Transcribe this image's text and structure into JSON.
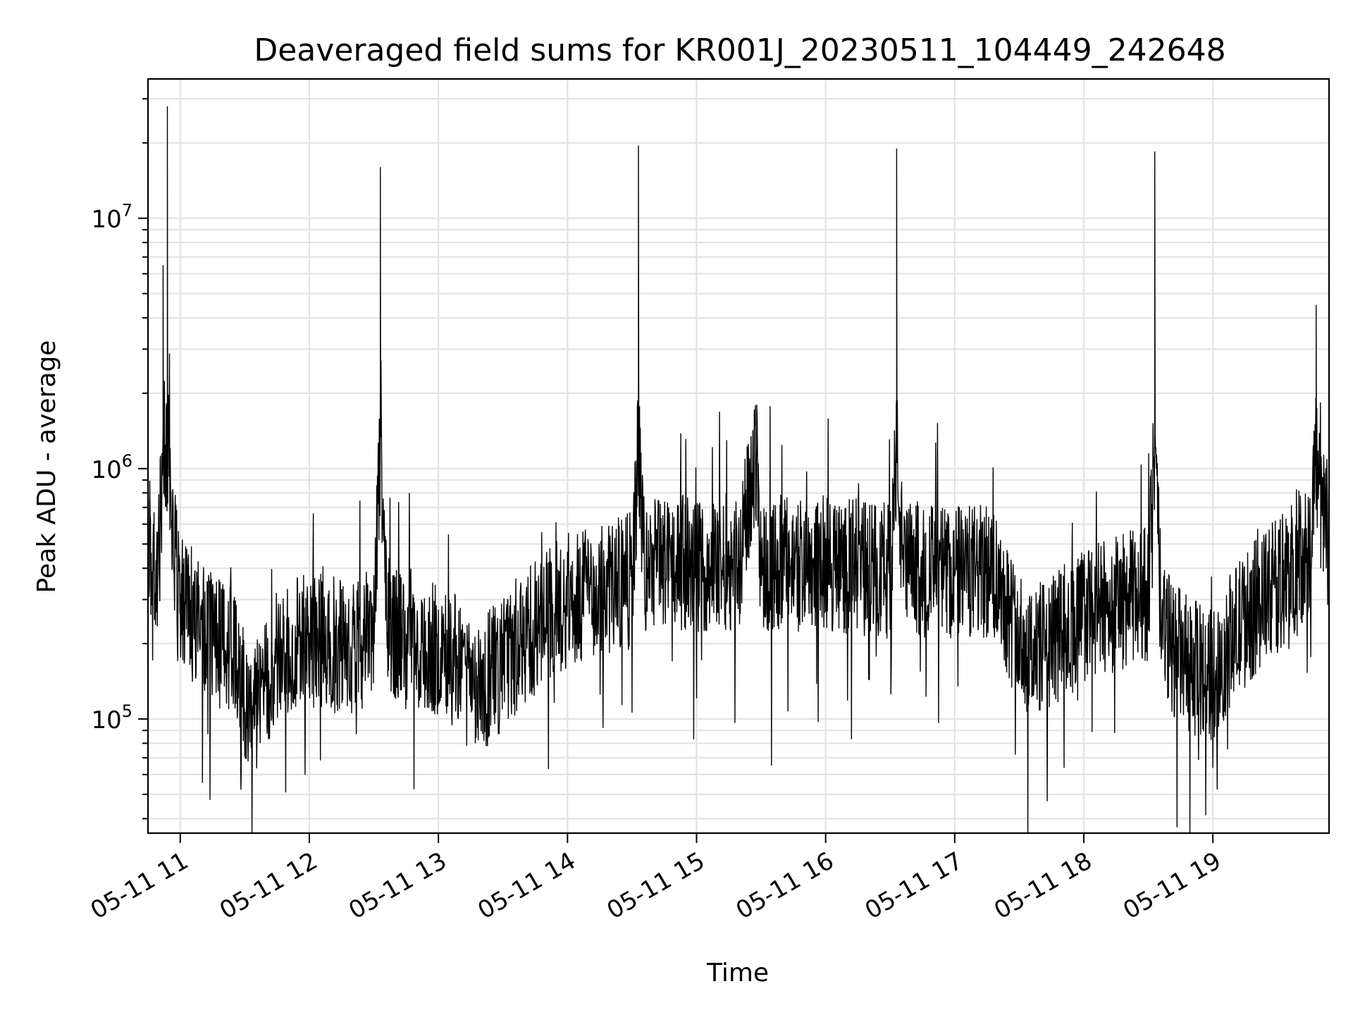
{
  "chart_data": {
    "type": "line",
    "title": "Deaveraged field sums for KR001J_20230511_104449_242648",
    "xlabel": "Time",
    "ylabel": "Peak ADU - average",
    "x_scale": "time",
    "y_scale": "log",
    "xlim": [
      "2023-05-11 10:45",
      "2023-05-11 19:54"
    ],
    "ylim": [
      35000,
      36000000
    ],
    "x_ticks": [
      {
        "value": "2023-05-11 11:00",
        "label": "05-11 11"
      },
      {
        "value": "2023-05-11 12:00",
        "label": "05-11 12"
      },
      {
        "value": "2023-05-11 13:00",
        "label": "05-11 13"
      },
      {
        "value": "2023-05-11 14:00",
        "label": "05-11 14"
      },
      {
        "value": "2023-05-11 15:00",
        "label": "05-11 15"
      },
      {
        "value": "2023-05-11 16:00",
        "label": "05-11 16"
      },
      {
        "value": "2023-05-11 17:00",
        "label": "05-11 17"
      },
      {
        "value": "2023-05-11 18:00",
        "label": "05-11 18"
      },
      {
        "value": "2023-05-11 19:00",
        "label": "05-11 19"
      }
    ],
    "y_ticks": [
      {
        "value": 100000,
        "base": "10",
        "exp": "5"
      },
      {
        "value": 1000000,
        "base": "10",
        "exp": "6"
      },
      {
        "value": 10000000,
        "base": "10",
        "exp": "7"
      }
    ],
    "grid": "major and minor",
    "line_color": "#000000",
    "series": [
      {
        "time": [
          "2023-05-11 10:45",
          "2023-05-11 10:50",
          "2023-05-11 10:52",
          "2023-05-11 10:54",
          "2023-05-11 10:56",
          "2023-05-11 10:58",
          "2023-05-11 11:00",
          "2023-05-11 11:05",
          "2023-05-11 11:10",
          "2023-05-11 11:15",
          "2023-05-11 11:20",
          "2023-05-11 11:25",
          "2023-05-11 11:30",
          "2023-05-11 11:35",
          "2023-05-11 11:40",
          "2023-05-11 11:45",
          "2023-05-11 11:50",
          "2023-05-11 11:55",
          "2023-05-11 12:00",
          "2023-05-11 12:10",
          "2023-05-11 12:20",
          "2023-05-11 12:30",
          "2023-05-11 12:33",
          "2023-05-11 12:36",
          "2023-05-11 12:40",
          "2023-05-11 12:50",
          "2023-05-11 13:00",
          "2023-05-11 13:10",
          "2023-05-11 13:20",
          "2023-05-11 13:30",
          "2023-05-11 13:40",
          "2023-05-11 13:50",
          "2023-05-11 14:00",
          "2023-05-11 14:10",
          "2023-05-11 14:20",
          "2023-05-11 14:30",
          "2023-05-11 14:33",
          "2023-05-11 14:36",
          "2023-05-11 14:40",
          "2023-05-11 14:50",
          "2023-05-11 15:00",
          "2023-05-11 15:10",
          "2023-05-11 15:20",
          "2023-05-11 15:28",
          "2023-05-11 15:30",
          "2023-05-11 15:40",
          "2023-05-11 15:50",
          "2023-05-11 16:00",
          "2023-05-11 16:10",
          "2023-05-11 16:20",
          "2023-05-11 16:30",
          "2023-05-11 16:33",
          "2023-05-11 16:36",
          "2023-05-11 16:40",
          "2023-05-11 16:50",
          "2023-05-11 17:00",
          "2023-05-11 17:10",
          "2023-05-11 17:20",
          "2023-05-11 17:30",
          "2023-05-11 17:40",
          "2023-05-11 17:50",
          "2023-05-11 18:00",
          "2023-05-11 18:10",
          "2023-05-11 18:20",
          "2023-05-11 18:30",
          "2023-05-11 18:33",
          "2023-05-11 18:36",
          "2023-05-11 18:40",
          "2023-05-11 18:50",
          "2023-05-11 19:00",
          "2023-05-11 19:10",
          "2023-05-11 19:20",
          "2023-05-11 19:30",
          "2023-05-11 19:40",
          "2023-05-11 19:45",
          "2023-05-11 19:48",
          "2023-05-11 19:50",
          "2023-05-11 19:54"
        ],
        "values": [
          500000,
          420000,
          6500000,
          28000000,
          700000,
          380000,
          300000,
          260000,
          250000,
          220000,
          200000,
          190000,
          130000,
          110000,
          140000,
          180000,
          190000,
          200000,
          210000,
          200000,
          190000,
          220000,
          16000000,
          240000,
          220000,
          210000,
          190000,
          170000,
          140000,
          160000,
          210000,
          250000,
          300000,
          320000,
          330000,
          360000,
          19500000,
          380000,
          420000,
          430000,
          400000,
          420000,
          430000,
          1800000,
          400000,
          420000,
          430000,
          420000,
          410000,
          400000,
          390000,
          19000000,
          380000,
          400000,
          390000,
          380000,
          390000,
          370000,
          200000,
          190000,
          220000,
          260000,
          280000,
          300000,
          320000,
          18500000,
          240000,
          200000,
          160000,
          150000,
          220000,
          280000,
          340000,
          430000,
          500000,
          4500000,
          650000,
          700000
        ]
      }
    ]
  }
}
